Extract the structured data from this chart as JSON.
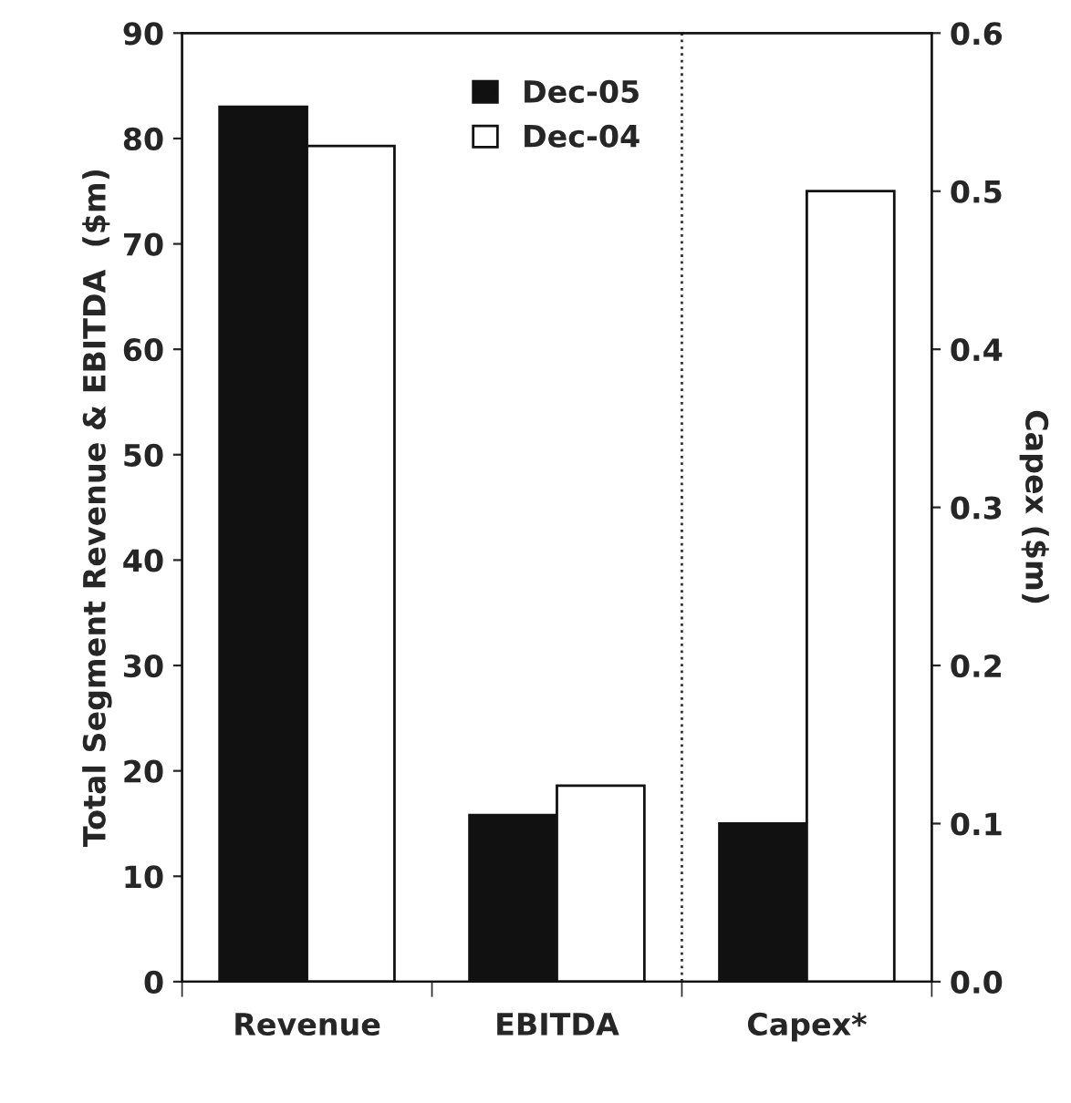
{
  "chart_data": {
    "type": "bar",
    "categories": [
      "Revenue",
      "EBITDA",
      "Capex*"
    ],
    "ylabel": "Total Segment Revenue & EBITDA  ($m)",
    "y2label": "Capex ($m)",
    "series": [
      {
        "name": "Dec-05",
        "color": "#111111",
        "values": [
          83,
          15.8,
          null
        ]
      },
      {
        "name": "Dec-04",
        "color": "#ffffff",
        "values": [
          79.3,
          18.6,
          null
        ]
      },
      {
        "color": "#111111",
        "axis": "y2",
        "values": [
          null,
          null,
          0.1
        ]
      },
      {
        "color": "#ffffff",
        "axis": "y2",
        "values": [
          null,
          null,
          0.5
        ]
      }
    ],
    "ylim": [
      0,
      90
    ],
    "yticks": [
      0,
      10,
      20,
      30,
      40,
      50,
      60,
      70,
      80,
      90
    ],
    "y2lim": [
      0,
      0.6
    ],
    "y2ticks": [
      {
        "value": 0,
        "label": "0.0"
      },
      {
        "value": 0.1,
        "label": "0.1"
      },
      {
        "value": 0.2,
        "label": "0.2"
      },
      {
        "value": 0.3,
        "label": "0.3"
      },
      {
        "value": 0.4,
        "label": "0.4"
      },
      {
        "value": 0.5,
        "label": "0.5"
      },
      {
        "value": 0.6,
        "label": "0.6"
      }
    ],
    "legend": "top",
    "grid": false
  }
}
